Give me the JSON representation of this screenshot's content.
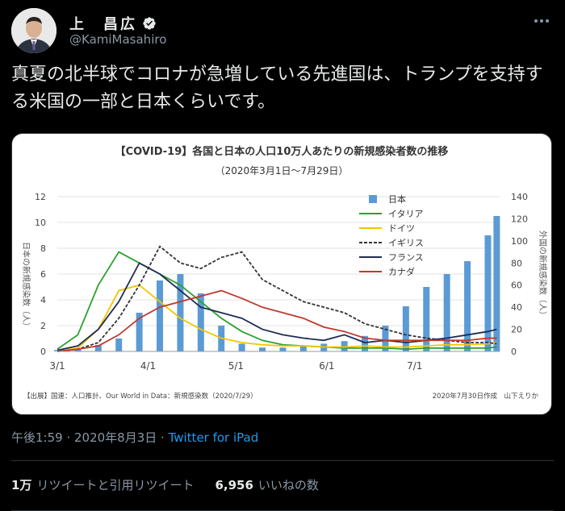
{
  "user": {
    "display_name": "上　昌広",
    "handle": "@KamiMasahiro"
  },
  "tweet": {
    "text": "真夏の北半球でコロナが急増している先進国は、トランプを支持する米国の一部と日本くらいです。"
  },
  "meta": {
    "timestamp": "午後1:59 · 2020年8月3日 · ",
    "source": "Twitter for iPad"
  },
  "stats": {
    "retweets_count": "1万",
    "retweets_label": "リツイートと引用リツイート",
    "likes_count": "6,956",
    "likes_label": "いいねの数"
  },
  "colors": {
    "japan": "#5b9bd5",
    "italy": "#2ca02c",
    "germany": "#f2c500",
    "uk": "#333333",
    "france": "#1f2d55",
    "canada": "#c0392b"
  },
  "chart_data": {
    "type": "bar",
    "title": "【COVID-19】各国と日本の人口10万人あたりの新規感染者数の推移",
    "subtitle": "（2020年3月1日〜7月29日）",
    "ylabel_left": "日本の新規感染数（人）",
    "ylabel_right": "外国の新規感染数（人）",
    "ylim_left": [
      0,
      12
    ],
    "ylim_right": [
      0,
      140
    ],
    "yticks_left": [
      "0",
      "2",
      "4",
      "6",
      "8",
      "10",
      "12"
    ],
    "yticks_right": [
      "0",
      "20",
      "40",
      "60",
      "80",
      "100",
      "120",
      "140"
    ],
    "xticks": [
      "3/1",
      "4/1",
      "5/1",
      "6/1",
      "7/1"
    ],
    "legend_position": "top-right",
    "source_note": "【出展】国連：人口推計、Our World in Data：新規感染数（2020/7/29）",
    "credit_note": "2020年7月30日作成　山下えりか",
    "series": [
      {
        "name": "日本",
        "kind": "bar",
        "axis": "left",
        "x": [
          1,
          8,
          15,
          22,
          29,
          36,
          43,
          50,
          57,
          64,
          71,
          78,
          85,
          92,
          99,
          106,
          113,
          120,
          127,
          134,
          141,
          148,
          151
        ],
        "values": [
          0.1,
          0.2,
          0.5,
          1.0,
          3.0,
          5.5,
          6.0,
          4.5,
          2.0,
          0.6,
          0.3,
          0.3,
          0.4,
          0.6,
          0.8,
          1.2,
          2.0,
          3.5,
          5.0,
          6.0,
          7.0,
          9.0,
          10.5
        ]
      },
      {
        "name": "イタリア",
        "kind": "line",
        "axis": "right",
        "x": [
          1,
          8,
          15,
          22,
          29,
          36,
          43,
          50,
          57,
          64,
          71,
          78,
          85,
          92,
          99,
          106,
          113,
          120,
          127,
          134,
          141,
          148,
          151
        ],
        "values": [
          2,
          15,
          60,
          90,
          80,
          70,
          60,
          45,
          30,
          18,
          10,
          6,
          5,
          4,
          3,
          3,
          3,
          2,
          3,
          3,
          3,
          3,
          4
        ]
      },
      {
        "name": "ドイツ",
        "kind": "line",
        "axis": "right",
        "x": [
          1,
          8,
          15,
          22,
          29,
          36,
          43,
          50,
          57,
          64,
          71,
          78,
          85,
          92,
          99,
          106,
          113,
          120,
          127,
          134,
          141,
          148,
          151
        ],
        "values": [
          0,
          3,
          20,
          55,
          60,
          45,
          30,
          20,
          12,
          8,
          6,
          5,
          5,
          4,
          4,
          5,
          4,
          4,
          5,
          6,
          6,
          7,
          8
        ]
      },
      {
        "name": "イギリス",
        "kind": "line",
        "axis": "right",
        "x": [
          1,
          8,
          15,
          22,
          29,
          36,
          43,
          50,
          57,
          64,
          71,
          78,
          85,
          92,
          99,
          106,
          113,
          120,
          127,
          134,
          141,
          148,
          151
        ],
        "values": [
          0,
          2,
          8,
          30,
          60,
          95,
          80,
          75,
          85,
          90,
          65,
          55,
          45,
          40,
          35,
          25,
          20,
          15,
          12,
          10,
          8,
          8,
          7
        ]
      },
      {
        "name": "フランス",
        "kind": "line",
        "axis": "right",
        "x": [
          1,
          8,
          15,
          22,
          29,
          36,
          43,
          50,
          57,
          64,
          71,
          78,
          85,
          92,
          99,
          106,
          113,
          120,
          127,
          134,
          141,
          148,
          151
        ],
        "values": [
          1,
          5,
          20,
          45,
          80,
          70,
          55,
          40,
          35,
          30,
          20,
          15,
          12,
          10,
          15,
          8,
          10,
          8,
          10,
          12,
          15,
          18,
          20
        ]
      },
      {
        "name": "カナダ",
        "kind": "line",
        "axis": "right",
        "x": [
          1,
          8,
          15,
          22,
          29,
          36,
          43,
          50,
          57,
          64,
          71,
          78,
          85,
          92,
          99,
          106,
          113,
          120,
          127,
          134,
          141,
          148,
          151
        ],
        "values": [
          0,
          2,
          5,
          15,
          30,
          40,
          45,
          50,
          55,
          48,
          40,
          35,
          30,
          22,
          18,
          12,
          10,
          10,
          10,
          10,
          10,
          12,
          12
        ]
      }
    ]
  }
}
